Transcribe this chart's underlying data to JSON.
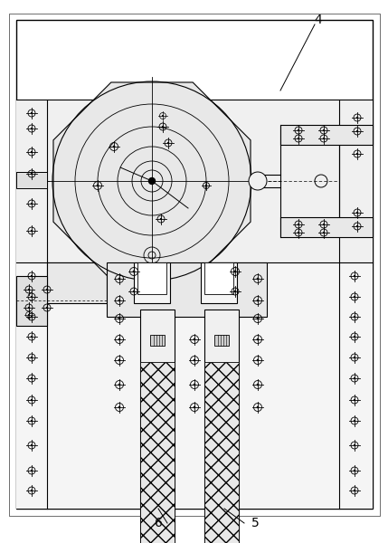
{
  "bg_color": "#ffffff",
  "line_color": "#000000",
  "lw_main": 0.8,
  "lw_thin": 0.5,
  "bolt_r": 4.5,
  "fig_width": 4.29,
  "fig_height": 6.0,
  "dpi": 100
}
